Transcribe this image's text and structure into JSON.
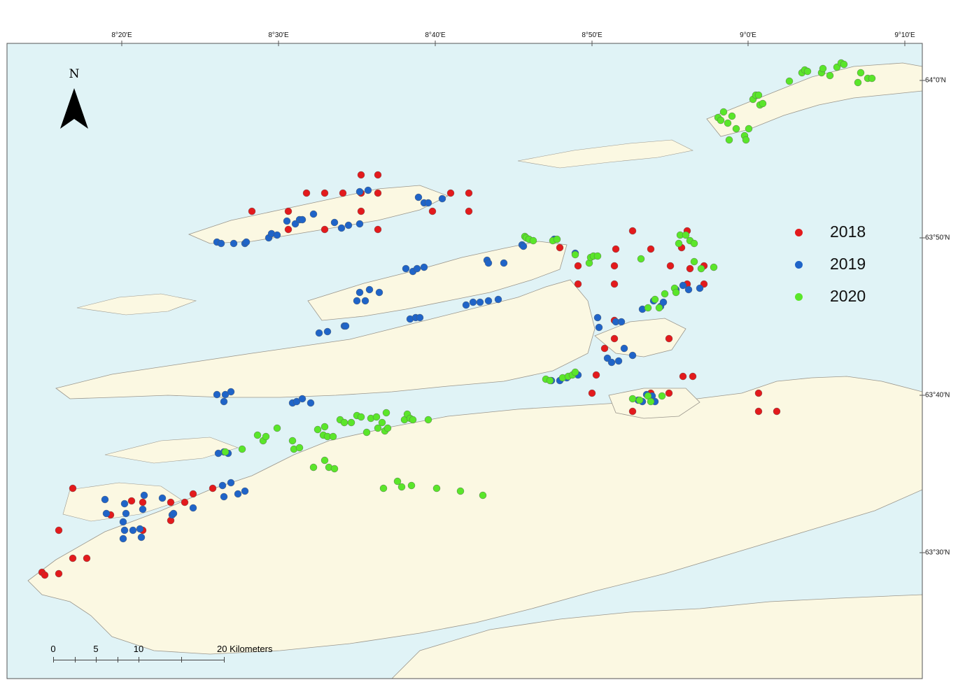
{
  "map": {
    "frame_colors": {
      "sea": "#e0f3f6",
      "land": "#fbf8e2",
      "coast": "#9a968c",
      "border": "#555555"
    },
    "top_ticks": [
      "8°20'E",
      "8°30'E",
      "8°40'E",
      "8°50'E",
      "9°0'E",
      "9°10'E"
    ],
    "right_ticks": [
      "64°0'N",
      "63°50'N",
      "63°40'N",
      "63°30'N"
    ],
    "north_label": "N",
    "legend": [
      {
        "label": "2018",
        "color": "#e31a1c"
      },
      {
        "label": "2019",
        "color": "#1f64c8"
      },
      {
        "label": "2020",
        "color": "#5ae62a"
      }
    ],
    "scale": {
      "labels": [
        "0",
        "5",
        "10",
        "20 Kilometers"
      ]
    }
  }
}
